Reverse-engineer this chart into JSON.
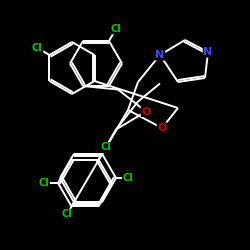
{
  "background_color": "#000000",
  "bond_color": "#ffffff",
  "atom_colors": {
    "Cl": "#00cc00",
    "O": "#cc0000",
    "N": "#4444ff",
    "C": "#ffffff"
  },
  "figsize": [
    2.5,
    2.5
  ],
  "dpi": 100,
  "linewidth": 1.4
}
